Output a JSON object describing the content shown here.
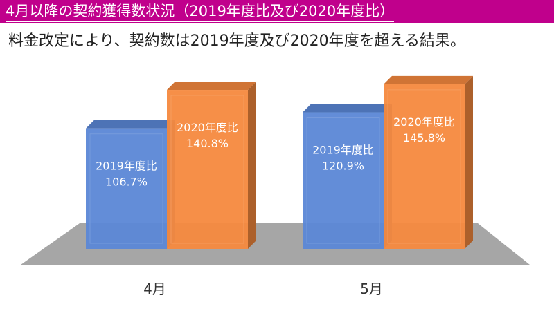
{
  "header": {
    "title": "4月以降の契約獲得数状況（2019年度比及び2020年度比）",
    "subtitle": "料金改定により、契約数は2019年度及び2020年度を超える結果。"
  },
  "colors": {
    "title_bar": "#c0008c",
    "series_2019": "#5b87d6",
    "series_2020": "#f5893e",
    "floor": "#a6a6a6"
  },
  "chart_data": {
    "type": "bar",
    "categories": [
      "4月",
      "5月"
    ],
    "series": [
      {
        "name": "2019年度比",
        "values": [
          106.7,
          120.9
        ],
        "labels": [
          "106.7%",
          "120.9%"
        ]
      },
      {
        "name": "2020年度比",
        "values": [
          140.8,
          145.8
        ],
        "labels": [
          "140.8%",
          "145.8%"
        ]
      }
    ],
    "ylim": [
      0,
      150
    ],
    "grid": false,
    "legend": "none",
    "style": "3d"
  }
}
